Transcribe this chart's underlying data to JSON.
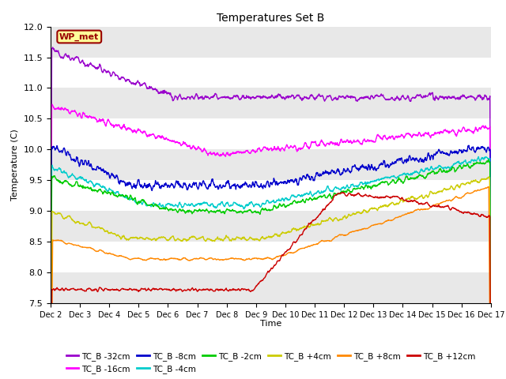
{
  "title": "Temperatures Set B",
  "xlabel": "Time",
  "ylabel": "Temperature (C)",
  "ylim": [
    7.5,
    12.0
  ],
  "xlim": [
    0,
    15
  ],
  "x_tick_labels": [
    "Dec 2",
    "Dec 3",
    "Dec 4",
    "Dec 5",
    "Dec 6",
    "Dec 7",
    "Dec 8",
    "Dec 9",
    "Dec 10",
    "Dec 11",
    "Dec 12",
    "Dec 13",
    "Dec 14",
    "Dec 15",
    "Dec 16",
    "Dec 17"
  ],
  "series": [
    {
      "label": "TC_B -32cm",
      "color": "#9900cc"
    },
    {
      "label": "TC_B -16cm",
      "color": "#ff00ff"
    },
    {
      "label": "TC_B -8cm",
      "color": "#0000cc"
    },
    {
      "label": "TC_B -4cm",
      "color": "#00cccc"
    },
    {
      "label": "TC_B -2cm",
      "color": "#00cc00"
    },
    {
      "label": "TC_B +4cm",
      "color": "#cccc00"
    },
    {
      "label": "TC_B +8cm",
      "color": "#ff8800"
    },
    {
      "label": "TC_B +12cm",
      "color": "#cc0000"
    }
  ],
  "wp_met_color": "#ffff99",
  "wp_met_border": "#990000",
  "fig_bg_color": "#ffffff",
  "plot_bg_color": "#ffffff",
  "grid_color": "#cccccc",
  "band_color": "#e8e8e8"
}
